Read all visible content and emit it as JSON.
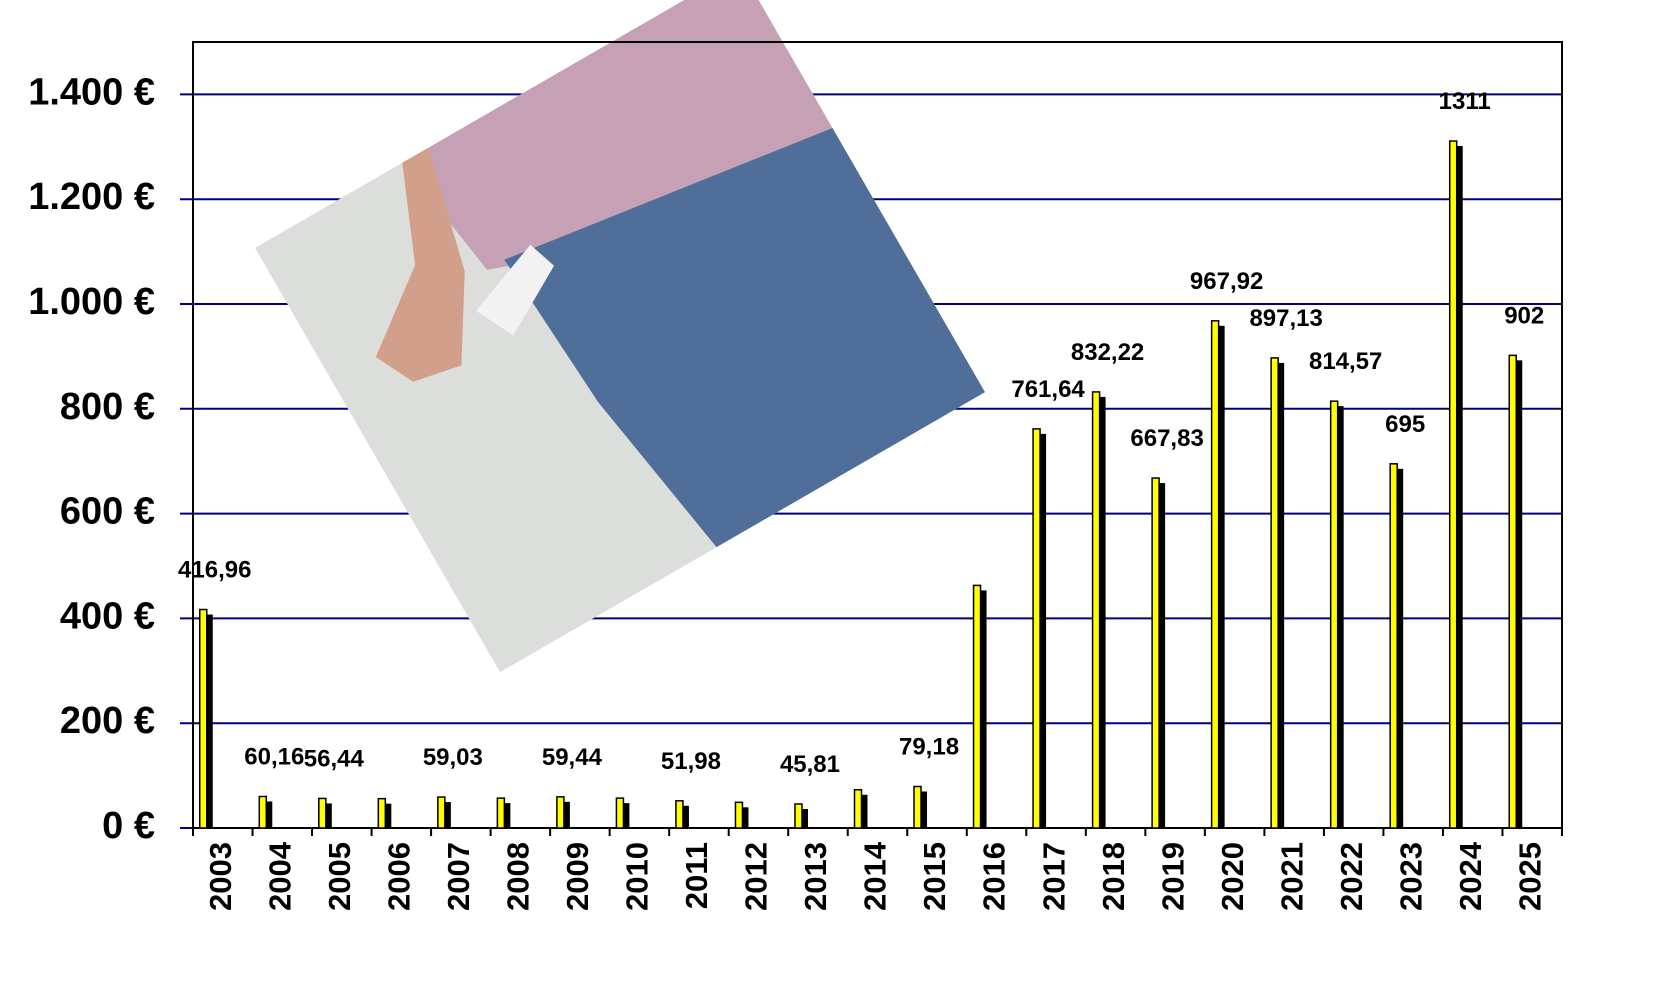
{
  "chart_data": {
    "type": "bar",
    "categories": [
      "2003",
      "2004",
      "2005",
      "2006",
      "2007",
      "2008",
      "2009",
      "2010",
      "2011",
      "2012",
      "2013",
      "2014",
      "2015",
      "2016",
      "2017",
      "2018",
      "2019",
      "2020",
      "2021",
      "2022",
      "2023",
      "2024",
      "2025"
    ],
    "values": [
      416.96,
      60.16,
      56.44,
      56,
      59.03,
      57,
      59.44,
      57,
      51.98,
      49,
      45.81,
      73,
      79.18,
      463,
      761.64,
      832.22,
      667.83,
      967.92,
      897.13,
      814.57,
      695,
      1311,
      902
    ],
    "value_labels": [
      "416,96",
      "60,16",
      "56,44",
      null,
      "59,03",
      null,
      "59,44",
      null,
      "51,98",
      null,
      "45,81",
      null,
      "79,18",
      null,
      "761,64",
      "832,22",
      "667,83",
      "967,92",
      "897,13",
      "814,57",
      "695",
      "1311",
      "902"
    ],
    "color": "#ffff00",
    "ylim": [
      0,
      1500
    ],
    "yticks": [
      {
        "value": 0,
        "label": "0 €"
      },
      {
        "value": 200,
        "label": "200 €"
      },
      {
        "value": 400,
        "label": "400 €"
      },
      {
        "value": 600,
        "label": "600 €"
      },
      {
        "value": 800,
        "label": "800 €"
      },
      {
        "value": 1000,
        "label": "1.000 €"
      },
      {
        "value": 1200,
        "label": "1.200 €"
      },
      {
        "value": 1400,
        "label": "1.400 €"
      }
    ],
    "grid": true
  }
}
